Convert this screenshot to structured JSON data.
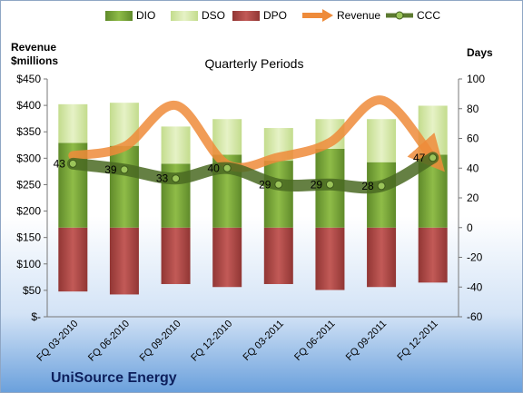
{
  "chart_data": {
    "type": "bar",
    "title": "Quarterly Periods",
    "company": "UniSource Energy",
    "left_axis_label": [
      "Revenue",
      "$millions"
    ],
    "right_axis_label": "Days",
    "categories": [
      "FQ 03-2010",
      "FQ 06-2010",
      "FQ 09-2010",
      "FQ 12-2010",
      "FQ 03-2011",
      "FQ 06-2011",
      "FQ 09-2011",
      "FQ 12-2011"
    ],
    "left_ylim": [
      0,
      450
    ],
    "left_ticks": [
      0,
      50,
      100,
      150,
      200,
      250,
      300,
      350,
      400,
      450
    ],
    "left_tick_labels": [
      "$-",
      "$50",
      "$100",
      "$150",
      "$200",
      "$250",
      "$300",
      "$350",
      "$400",
      "$450"
    ],
    "right_ylim": [
      -60,
      100
    ],
    "right_ticks": [
      -60,
      -40,
      -20,
      0,
      20,
      40,
      60,
      80,
      100
    ],
    "right_tick_labels": [
      "-60",
      "-40",
      "-20",
      "0",
      "20",
      "40",
      "60",
      "80",
      "100"
    ],
    "legend_position": "top",
    "grid": false,
    "series": [
      {
        "name": "DIO",
        "kind": "stacked-bar",
        "axis": "right",
        "color": "#7eab3c",
        "values": [
          57,
          55,
          43,
          49,
          45,
          53,
          44,
          49
        ]
      },
      {
        "name": "DSO",
        "kind": "stacked-bar",
        "axis": "right",
        "color": "#d9ebb1",
        "values": [
          26,
          29,
          25,
          24,
          22,
          20,
          29,
          33
        ]
      },
      {
        "name": "DPO",
        "kind": "negative-bar",
        "axis": "right",
        "color": "#b54a48",
        "values": [
          -43,
          -45,
          -38,
          -40,
          -38,
          -42,
          -40,
          -37
        ]
      },
      {
        "name": "Revenue",
        "kind": "line",
        "axis": "left",
        "color": "#ee8b3a",
        "values": [
          305,
          322,
          400,
          288,
          302,
          330,
          410,
          300
        ]
      },
      {
        "name": "CCC",
        "kind": "line-markers",
        "axis": "right",
        "color": "#5c7a30",
        "values": [
          43,
          39,
          33,
          40,
          29,
          29,
          28,
          47
        ],
        "labels": [
          "43",
          "39",
          "33",
          "40",
          "29",
          "29",
          "28",
          "47"
        ]
      }
    ]
  },
  "colors": {
    "background_top": "#ffffff",
    "background_bottom": "#6aa0dc",
    "frame_border": "#8fa6c4"
  }
}
